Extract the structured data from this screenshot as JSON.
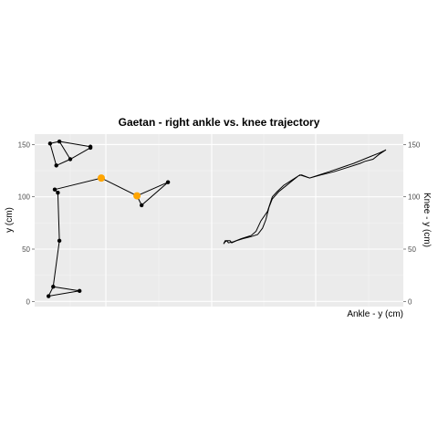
{
  "chart_data": {
    "type": "line",
    "title": "Gaetan - right ankle vs. knee trajectory",
    "xlabel": "Ankle - y (cm)",
    "ylabel": "y (cm)",
    "ylabel_right": "Knee - y (cm)",
    "ylim": [
      -5,
      160
    ],
    "y_ticks": [
      0,
      50,
      100,
      150
    ],
    "grid": true,
    "background": "#ebebeb",
    "colors": {
      "line": "#000000",
      "point": "#000000",
      "highlight": "#ffa500"
    },
    "series": [
      {
        "label": "skeleton",
        "segments": [
          [
            [
              -3,
              151
            ],
            [
              3,
              153
            ],
            [
              10,
              136
            ],
            [
              23,
              147
            ],
            [
              10,
              136
            ],
            [
              1,
              130
            ],
            [
              -3,
              151
            ]
          ],
          [
            [
              3,
              153
            ],
            [
              23,
              148
            ]
          ],
          [
            [
              0,
              107
            ],
            [
              30,
              118
            ],
            [
              53,
              101
            ],
            [
              73,
              114
            ],
            [
              56,
              92
            ],
            [
              53,
              101
            ]
          ],
          [
            [
              2,
              104
            ],
            [
              3,
              58
            ],
            [
              -1,
              14
            ],
            [
              -4,
              5
            ],
            [
              16,
              10
            ],
            [
              -1,
              14
            ]
          ],
          [
            [
              0,
              107
            ],
            [
              2,
              104
            ]
          ]
        ],
        "points": [
          [
            -3,
            151
          ],
          [
            3,
            153
          ],
          [
            10,
            136
          ],
          [
            23,
            147
          ],
          [
            23,
            148
          ],
          [
            1,
            130
          ],
          [
            0,
            107
          ],
          [
            2,
            104
          ],
          [
            56,
            92
          ],
          [
            73,
            114
          ],
          [
            3,
            58
          ],
          [
            -1,
            14
          ],
          [
            -4,
            5
          ],
          [
            16,
            10
          ]
        ],
        "highlight_points": [
          [
            30,
            118
          ],
          [
            53,
            101
          ]
        ]
      },
      {
        "label": "trajectory",
        "x_range": [
          0,
          100
        ],
        "points": [
          [
            0,
            55
          ],
          [
            1,
            58
          ],
          [
            4,
            58
          ],
          [
            5,
            56
          ],
          [
            8,
            58
          ],
          [
            12,
            60
          ],
          [
            17,
            62
          ],
          [
            21,
            64
          ],
          [
            24,
            70
          ],
          [
            26,
            78
          ],
          [
            28,
            90
          ],
          [
            30,
            98
          ],
          [
            34,
            105
          ],
          [
            38,
            110
          ],
          [
            42,
            115
          ],
          [
            46,
            120
          ],
          [
            48,
            121
          ],
          [
            53,
            118
          ],
          [
            60,
            121
          ],
          [
            68,
            124
          ],
          [
            76,
            128
          ],
          [
            84,
            132
          ],
          [
            87,
            134
          ],
          [
            92,
            136
          ],
          [
            96,
            141
          ],
          [
            100,
            145
          ],
          [
            96,
            142
          ],
          [
            91,
            139
          ],
          [
            80,
            132
          ],
          [
            65,
            124
          ],
          [
            53,
            118
          ],
          [
            47,
            121
          ],
          [
            42,
            116
          ],
          [
            37,
            111
          ],
          [
            33,
            105
          ],
          [
            30,
            100
          ],
          [
            27,
            86
          ],
          [
            23,
            77
          ],
          [
            20,
            67
          ],
          [
            17,
            63
          ],
          [
            11,
            60
          ],
          [
            6,
            57
          ],
          [
            3,
            56
          ],
          [
            2,
            58
          ],
          [
            1,
            57
          ],
          [
            0,
            55
          ]
        ]
      }
    ]
  }
}
